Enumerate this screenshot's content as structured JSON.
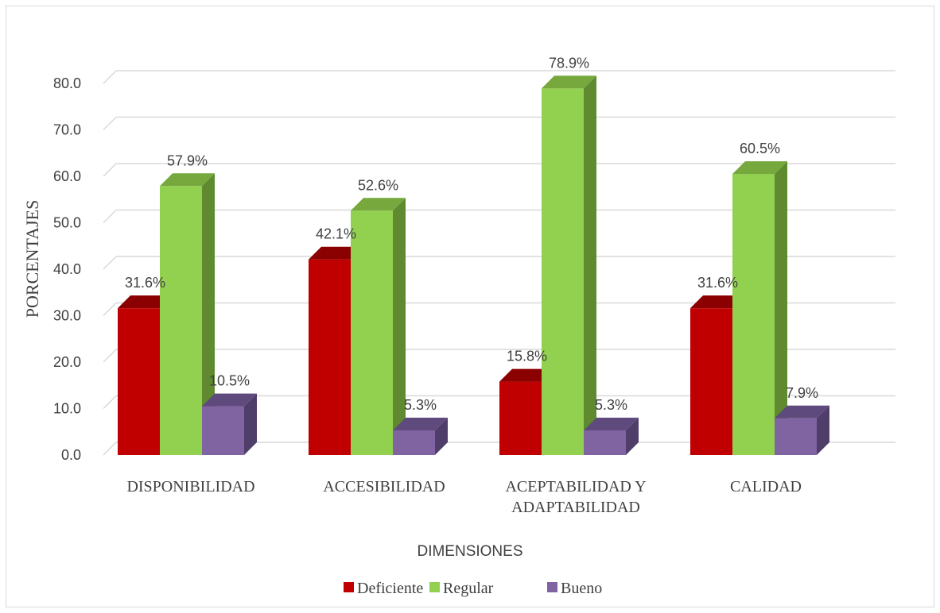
{
  "chart_data": {
    "type": "bar",
    "title": "",
    "xlabel": "DIMENSIONES",
    "ylabel": "PORCENTAJES",
    "ylim": [
      0,
      80
    ],
    "y_ticks": [
      "0.0",
      "10.0",
      "20.0",
      "30.0",
      "40.0",
      "50.0",
      "60.0",
      "70.0",
      "80.0"
    ],
    "grid": true,
    "legend_position": "bottom",
    "categories": [
      [
        "DISPONIBILIDAD"
      ],
      [
        "ACCESIBILIDAD"
      ],
      [
        "ACEPTABILIDAD Y",
        "ADAPTABILIDAD"
      ],
      [
        "CALIDAD"
      ]
    ],
    "series": [
      {
        "name": "Deficiente",
        "values": [
          31.6,
          42.1,
          15.8,
          31.6
        ],
        "labels": [
          "31.6%",
          "42.1%",
          "15.8%",
          "31.6%"
        ],
        "color": "#c00000",
        "top_color": "#8b0000",
        "side_color": "#7a0000"
      },
      {
        "name": "Regular",
        "values": [
          57.9,
          52.6,
          78.9,
          60.5
        ],
        "labels": [
          "57.9%",
          "52.6%",
          "78.9%",
          "60.5%"
        ],
        "color": "#92d050",
        "top_color": "#76a83d",
        "side_color": "#5f8a30"
      },
      {
        "name": "Bueno",
        "values": [
          10.5,
          5.3,
          5.3,
          7.9
        ],
        "labels": [
          "10.5%",
          "5.3%",
          "5.3%",
          "7.9%"
        ],
        "color": "#8064a2",
        "top_color": "#5e4a7c",
        "side_color": "#4f3e69"
      }
    ]
  }
}
